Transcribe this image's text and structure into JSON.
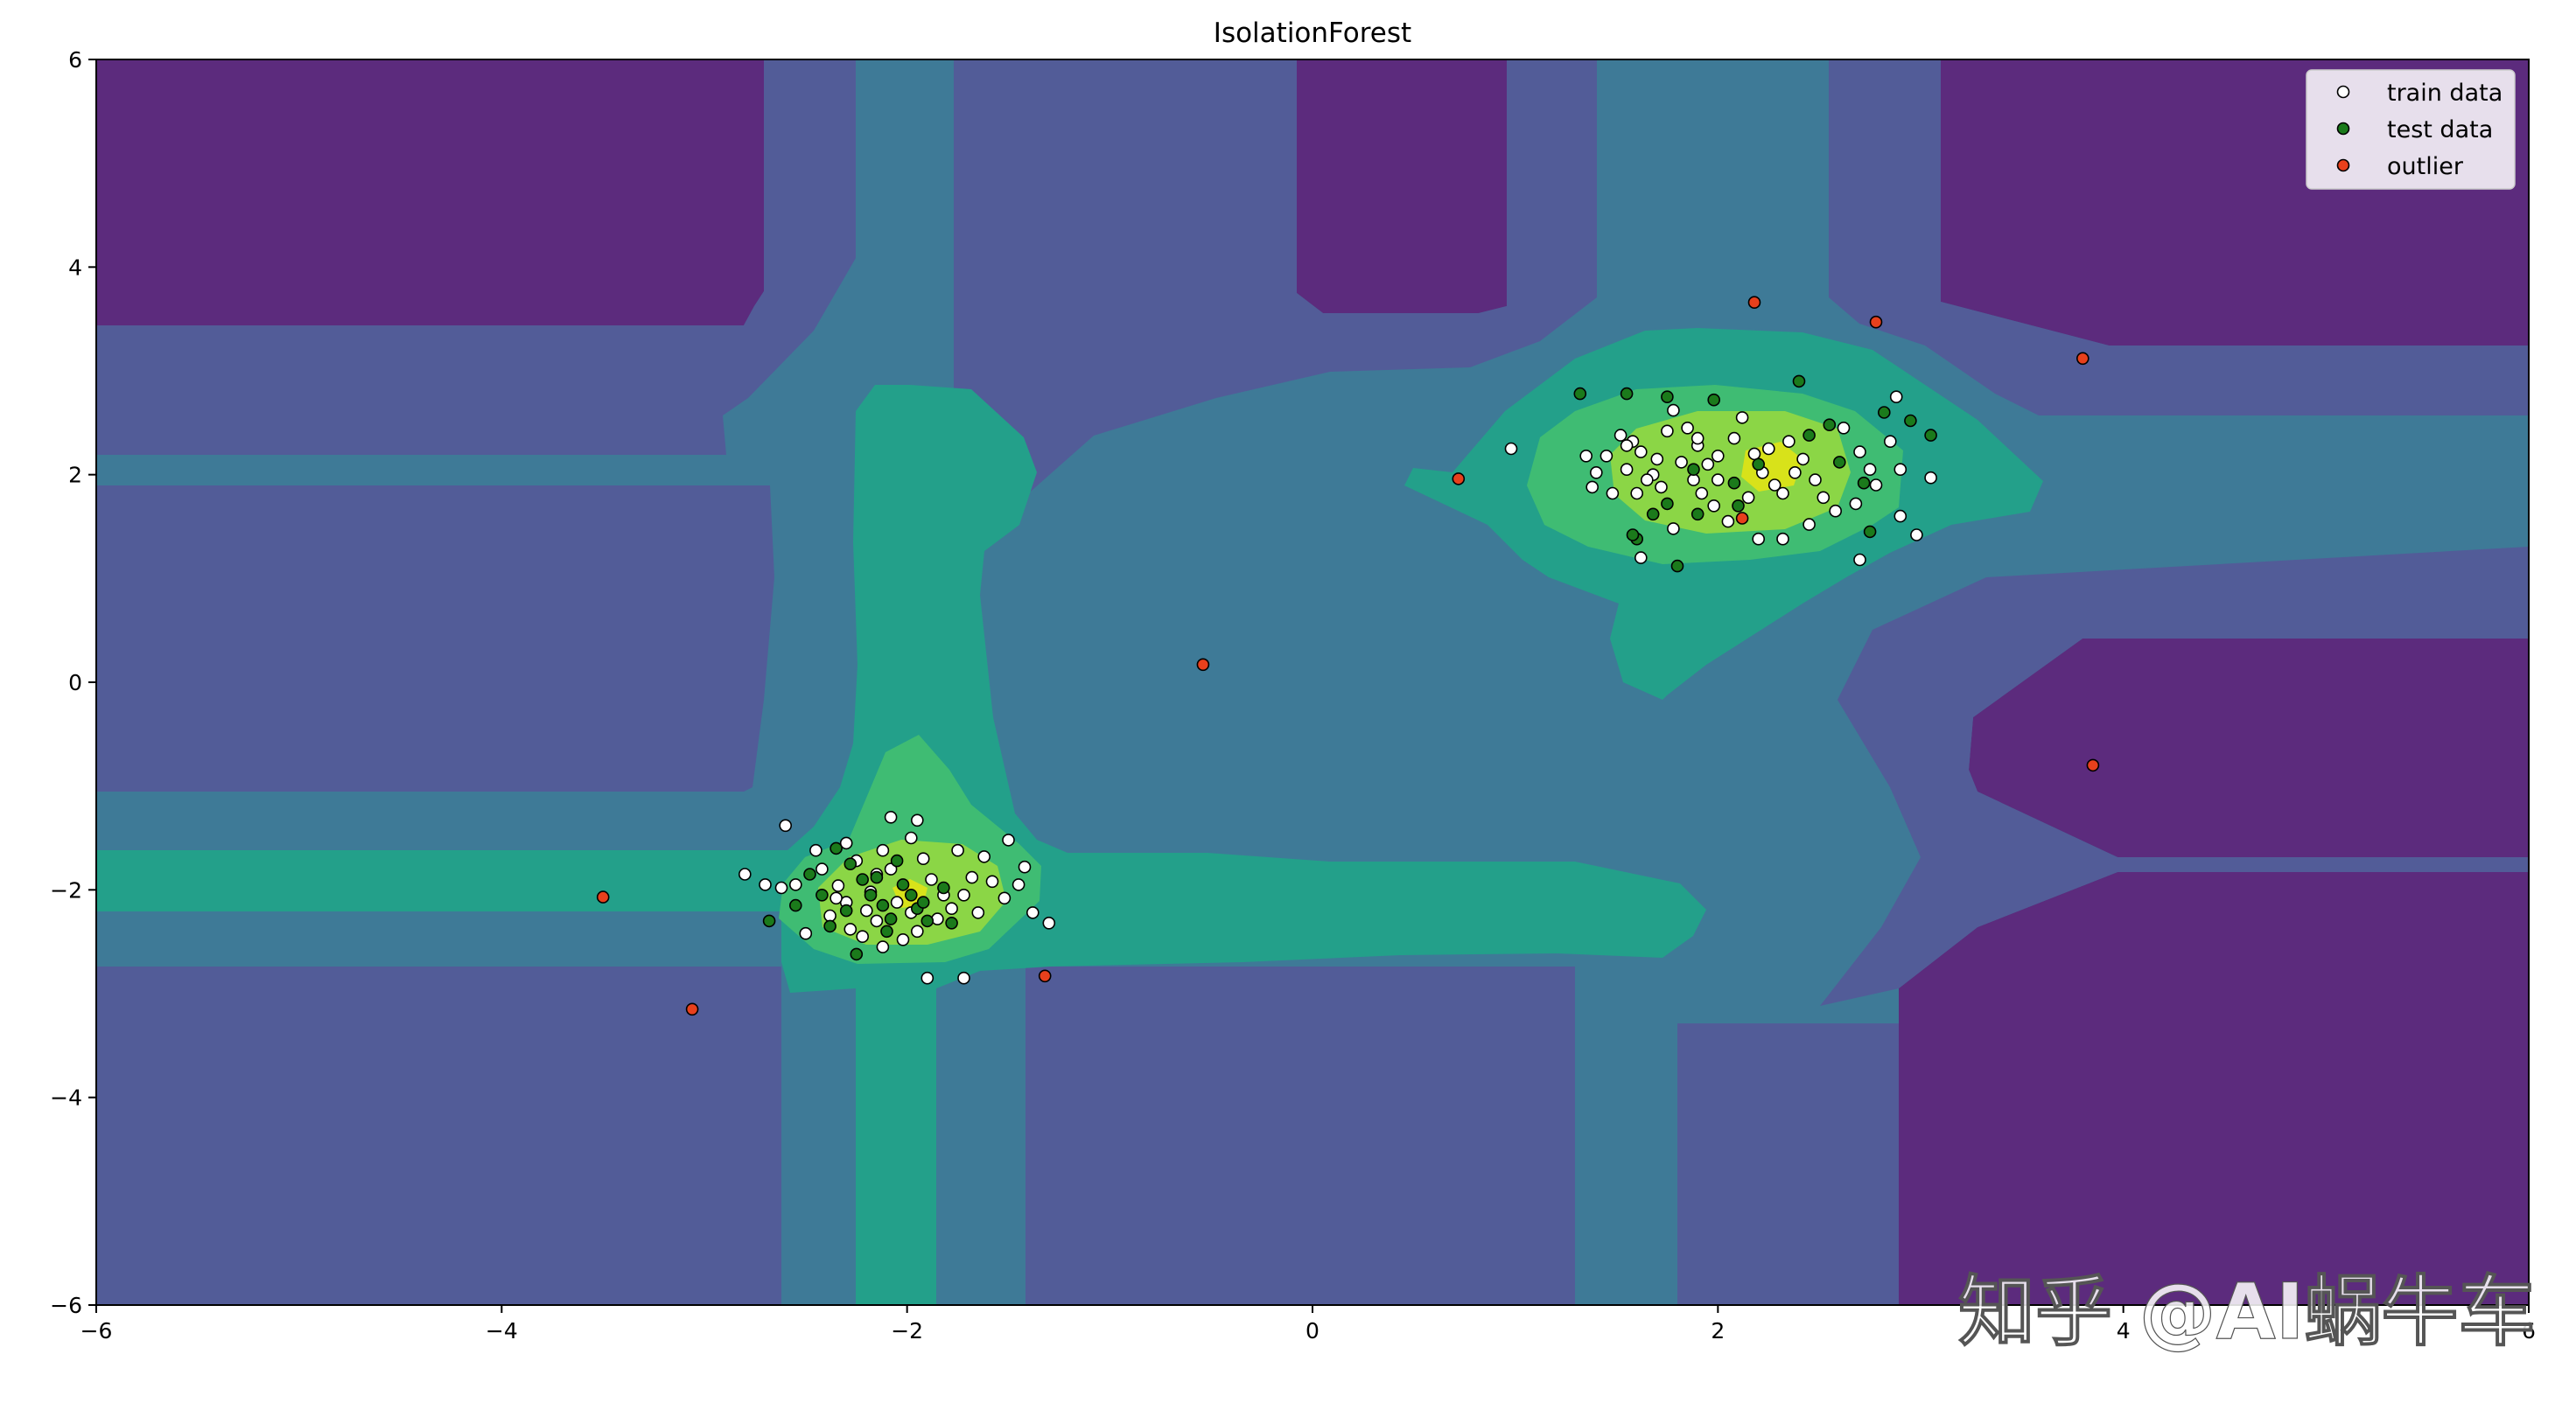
{
  "chart_data": {
    "type": "scatter",
    "title": "IsolationForest",
    "xlim": [
      -6,
      6
    ],
    "ylim": [
      -6,
      6
    ],
    "x_ticks": [
      -6,
      -4,
      -2,
      0,
      2,
      4,
      6
    ],
    "y_ticks": [
      -6,
      -4,
      -2,
      0,
      2,
      4,
      6
    ],
    "legend_position": "top-right",
    "background": "contourf decision function (viridis levels)",
    "series": [
      {
        "name": "train data",
        "color": "#ffffff",
        "points": [
          [
            -2.6,
            -1.38
          ],
          [
            -2.45,
            -1.62
          ],
          [
            -2.42,
            -1.8
          ],
          [
            -2.34,
            -1.96
          ],
          [
            -2.3,
            -2.12
          ],
          [
            -2.38,
            -2.25
          ],
          [
            -2.28,
            -2.38
          ],
          [
            -2.2,
            -2.2
          ],
          [
            -2.18,
            -2.02
          ],
          [
            -2.15,
            -1.85
          ],
          [
            -2.12,
            -1.62
          ],
          [
            -2.08,
            -1.3
          ],
          [
            -1.95,
            -1.33
          ],
          [
            -1.98,
            -1.5
          ],
          [
            -1.92,
            -1.7
          ],
          [
            -1.88,
            -1.9
          ],
          [
            -1.82,
            -2.05
          ],
          [
            -1.78,
            -2.18
          ],
          [
            -1.85,
            -2.28
          ],
          [
            -1.95,
            -2.4
          ],
          [
            -2.02,
            -2.48
          ],
          [
            -2.12,
            -2.55
          ],
          [
            -2.22,
            -2.45
          ],
          [
            -2.3,
            -1.55
          ],
          [
            -2.25,
            -1.72
          ],
          [
            -2.05,
            -2.12
          ],
          [
            -1.98,
            -2.22
          ],
          [
            -1.72,
            -2.05
          ],
          [
            -1.68,
            -1.88
          ],
          [
            -1.62,
            -1.68
          ],
          [
            -1.75,
            -1.62
          ],
          [
            -1.58,
            -1.92
          ],
          [
            -1.52,
            -2.08
          ],
          [
            -1.45,
            -1.95
          ],
          [
            -1.5,
            -1.52
          ],
          [
            -1.42,
            -1.78
          ],
          [
            -1.38,
            -2.22
          ],
          [
            -1.3,
            -2.32
          ],
          [
            -1.9,
            -2.85
          ],
          [
            -1.72,
            -2.85
          ],
          [
            -2.8,
            -1.85
          ],
          [
            -2.7,
            -1.95
          ],
          [
            -2.62,
            -1.98
          ],
          [
            -2.55,
            -1.95
          ],
          [
            -2.15,
            -2.3
          ],
          [
            -2.08,
            -1.8
          ],
          [
            -1.65,
            -2.22
          ],
          [
            -2.5,
            -2.42
          ],
          [
            -2.35,
            -2.08
          ],
          [
            0.98,
            2.25
          ],
          [
            1.35,
            2.18
          ],
          [
            1.4,
            2.02
          ],
          [
            1.38,
            1.88
          ],
          [
            1.45,
            2.18
          ],
          [
            1.52,
            2.38
          ],
          [
            1.58,
            2.32
          ],
          [
            1.62,
            2.22
          ],
          [
            1.55,
            2.05
          ],
          [
            1.48,
            1.82
          ],
          [
            1.6,
            1.82
          ],
          [
            1.68,
            2.0
          ],
          [
            1.7,
            2.15
          ],
          [
            1.75,
            2.42
          ],
          [
            1.78,
            2.62
          ],
          [
            1.85,
            2.45
          ],
          [
            1.9,
            2.28
          ],
          [
            1.82,
            2.12
          ],
          [
            1.88,
            1.95
          ],
          [
            1.92,
            1.82
          ],
          [
            1.98,
            1.7
          ],
          [
            2.05,
            1.55
          ],
          [
            2.0,
            2.18
          ],
          [
            2.08,
            2.35
          ],
          [
            2.12,
            2.55
          ],
          [
            2.18,
            2.2
          ],
          [
            2.22,
            2.02
          ],
          [
            2.28,
            1.9
          ],
          [
            2.32,
            1.82
          ],
          [
            2.38,
            2.02
          ],
          [
            2.42,
            2.15
          ],
          [
            2.48,
            1.95
          ],
          [
            2.52,
            1.78
          ],
          [
            2.58,
            1.65
          ],
          [
            2.45,
            1.52
          ],
          [
            2.35,
            2.32
          ],
          [
            2.62,
            2.45
          ],
          [
            2.7,
            2.22
          ],
          [
            2.75,
            2.05
          ],
          [
            2.78,
            1.9
          ],
          [
            2.68,
            1.72
          ],
          [
            2.85,
            2.32
          ],
          [
            2.9,
            2.05
          ],
          [
            2.9,
            1.6
          ],
          [
            2.98,
            1.42
          ],
          [
            3.05,
            1.97
          ],
          [
            2.88,
            2.75
          ],
          [
            2.2,
            1.38
          ],
          [
            2.32,
            1.38
          ],
          [
            2.7,
            1.18
          ],
          [
            1.78,
            1.48
          ],
          [
            1.62,
            1.2
          ],
          [
            1.9,
            2.35
          ],
          [
            2.15,
            1.78
          ],
          [
            2.0,
            1.95
          ],
          [
            2.25,
            2.25
          ],
          [
            1.72,
            1.88
          ],
          [
            1.55,
            2.28
          ],
          [
            1.95,
            2.1
          ],
          [
            1.65,
            1.95
          ]
        ]
      },
      {
        "name": "test data",
        "color": "#1b7a1b",
        "points": [
          [
            -2.35,
            -1.6
          ],
          [
            -2.28,
            -1.75
          ],
          [
            -2.22,
            -1.9
          ],
          [
            -2.18,
            -2.05
          ],
          [
            -2.12,
            -2.15
          ],
          [
            -2.08,
            -2.28
          ],
          [
            -2.05,
            -1.72
          ],
          [
            -2.02,
            -1.95
          ],
          [
            -1.98,
            -2.05
          ],
          [
            -1.95,
            -2.18
          ],
          [
            -1.9,
            -2.3
          ],
          [
            -1.78,
            -2.32
          ],
          [
            -2.38,
            -2.35
          ],
          [
            -2.42,
            -2.05
          ],
          [
            -2.48,
            -1.85
          ],
          [
            -2.55,
            -2.15
          ],
          [
            -2.68,
            -2.3
          ],
          [
            -2.25,
            -2.62
          ],
          [
            -1.82,
            -1.98
          ],
          [
            -2.15,
            -1.88
          ],
          [
            -2.3,
            -2.2
          ],
          [
            -1.92,
            -2.12
          ],
          [
            -2.1,
            -2.4
          ],
          [
            1.32,
            2.78
          ],
          [
            1.55,
            2.78
          ],
          [
            1.75,
            2.75
          ],
          [
            1.98,
            2.72
          ],
          [
            2.4,
            2.9
          ],
          [
            2.55,
            2.48
          ],
          [
            2.82,
            2.6
          ],
          [
            2.95,
            2.52
          ],
          [
            3.05,
            2.38
          ],
          [
            2.72,
            1.92
          ],
          [
            2.45,
            2.38
          ],
          [
            2.2,
            2.1
          ],
          [
            2.08,
            1.92
          ],
          [
            1.88,
            2.05
          ],
          [
            1.75,
            1.72
          ],
          [
            1.68,
            1.62
          ],
          [
            1.6,
            1.38
          ],
          [
            1.58,
            1.42
          ],
          [
            1.8,
            1.12
          ],
          [
            1.9,
            1.62
          ],
          [
            2.1,
            1.7
          ],
          [
            2.6,
            2.12
          ],
          [
            2.75,
            1.45
          ]
        ]
      },
      {
        "name": "outlier",
        "color": "#e8401c",
        "points": [
          [
            -3.5,
            -2.07
          ],
          [
            -3.06,
            -3.15
          ],
          [
            -1.32,
            -2.83
          ],
          [
            -0.54,
            0.17
          ],
          [
            0.72,
            1.96
          ],
          [
            2.18,
            3.66
          ],
          [
            2.78,
            3.47
          ],
          [
            3.8,
            3.12
          ],
          [
            3.85,
            -0.8
          ],
          [
            2.12,
            1.58
          ]
        ]
      }
    ]
  },
  "watermark": "知乎 @AI蜗牛车"
}
